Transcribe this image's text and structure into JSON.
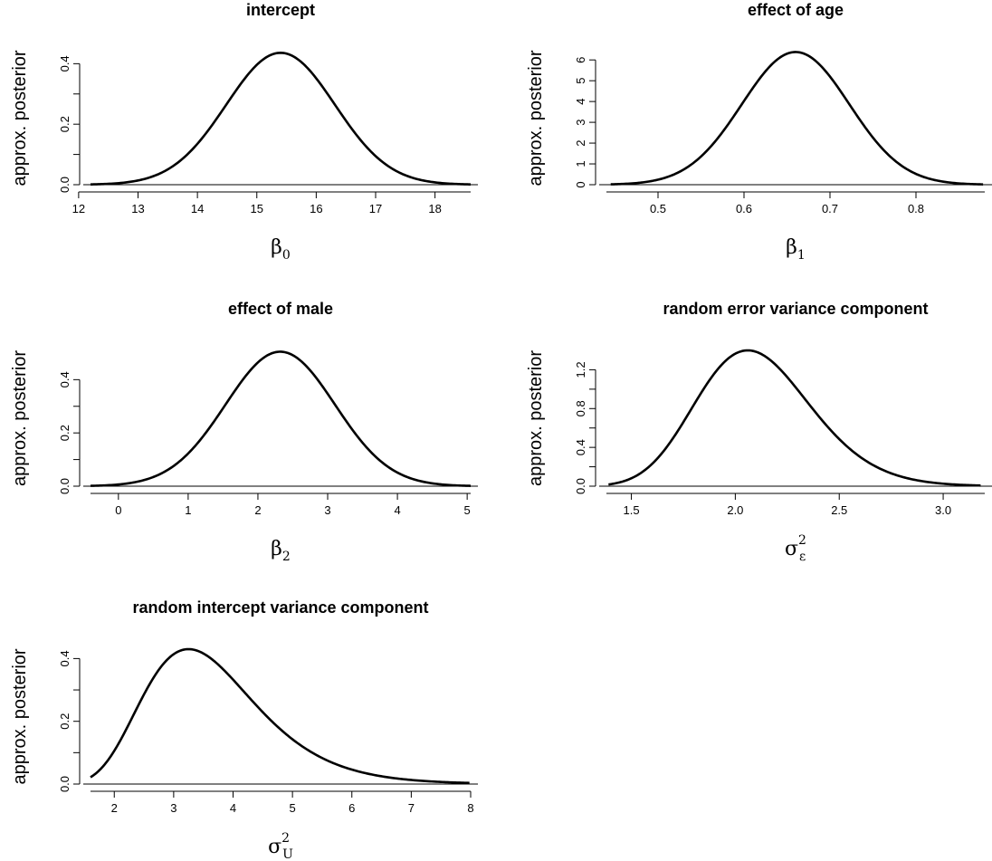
{
  "chart_data": [
    {
      "type": "line",
      "title": "intercept",
      "ylabel": "approx. posterior",
      "xlabel": {
        "base": "β",
        "sub": "0",
        "sup": ""
      },
      "xlim": [
        12.2,
        18.6
      ],
      "ylim": [
        0,
        0.44
      ],
      "xticks": [
        12,
        13,
        14,
        15,
        16,
        17,
        18
      ],
      "yticks": [
        0.0,
        0.2,
        0.4
      ],
      "ytick_labels": [
        "0.0",
        "0.2",
        "0.4"
      ],
      "yminor_count": 1,
      "curve": {
        "kind": "normal",
        "mean": 15.4,
        "sd": 0.915,
        "peak": 0.436,
        "range": [
          12.2,
          18.6
        ]
      }
    },
    {
      "type": "line",
      "title": "effect of age",
      "ylabel": "approx. posterior",
      "xlabel": {
        "base": "β",
        "sub": "1",
        "sup": ""
      },
      "xlim": [
        0.44,
        0.88
      ],
      "ylim": [
        0,
        6.4
      ],
      "xticks": [
        0.5,
        0.6,
        0.7,
        0.8
      ],
      "yticks": [
        0,
        1,
        2,
        3,
        4,
        5,
        6
      ],
      "ytick_labels": [
        "0",
        "1",
        "2",
        "3",
        "4",
        "5",
        "6"
      ],
      "yminor_count": 0,
      "curve": {
        "kind": "normal",
        "mean": 0.66,
        "sd": 0.0625,
        "peak": 6.38,
        "range": [
          0.445,
          0.878
        ]
      }
    },
    {
      "type": "line",
      "title": "effect of male",
      "ylabel": "approx. posterior",
      "xlabel": {
        "base": "β",
        "sub": "2",
        "sup": ""
      },
      "xlim": [
        -0.4,
        5.05
      ],
      "ylim": [
        0,
        0.51
      ],
      "xticks": [
        0,
        1,
        2,
        3,
        4,
        5
      ],
      "yticks": [
        0.0,
        0.2,
        0.4
      ],
      "ytick_labels": [
        "0.0",
        "0.2",
        "0.4"
      ],
      "yminor_count": 1,
      "curve": {
        "kind": "normal",
        "mean": 2.32,
        "sd": 0.785,
        "peak": 0.505,
        "range": [
          -0.4,
          5.05
        ]
      }
    },
    {
      "type": "line",
      "title": "random error variance component",
      "ylabel": "approx. posterior",
      "xlabel": {
        "base": "σ",
        "sub": "ε",
        "sup": "2"
      },
      "xlim": [
        1.38,
        3.2
      ],
      "ylim": [
        0,
        1.4
      ],
      "xticks": [
        1.5,
        2.0,
        2.5,
        3.0
      ],
      "yticks": [
        0.0,
        0.4,
        0.8,
        1.2
      ],
      "ytick_labels": [
        "0.0",
        "0.4",
        "0.8",
        "1.2"
      ],
      "yminor_count": 1,
      "curve": {
        "kind": "lognormal",
        "mode": 2.06,
        "sigma": 0.133,
        "peak": 1.4,
        "range": [
          1.39,
          3.18
        ]
      }
    },
    {
      "type": "line",
      "title": "random intercept variance component",
      "ylabel": "approx. posterior",
      "xlabel": {
        "base": "σ",
        "sub": "U",
        "sup": "2"
      },
      "xlim": [
        1.6,
        8.0
      ],
      "ylim": [
        0,
        0.43
      ],
      "xticks": [
        2,
        3,
        4,
        5,
        6,
        7,
        8
      ],
      "yticks": [
        0.0,
        0.2,
        0.4
      ],
      "ytick_labels": [
        "0.0",
        "0.2",
        "0.4"
      ],
      "yminor_count": 1,
      "curve": {
        "kind": "lognormal",
        "mode": 3.25,
        "sigma": 0.29,
        "peak": 0.43,
        "range": [
          1.6,
          7.98
        ]
      }
    }
  ]
}
